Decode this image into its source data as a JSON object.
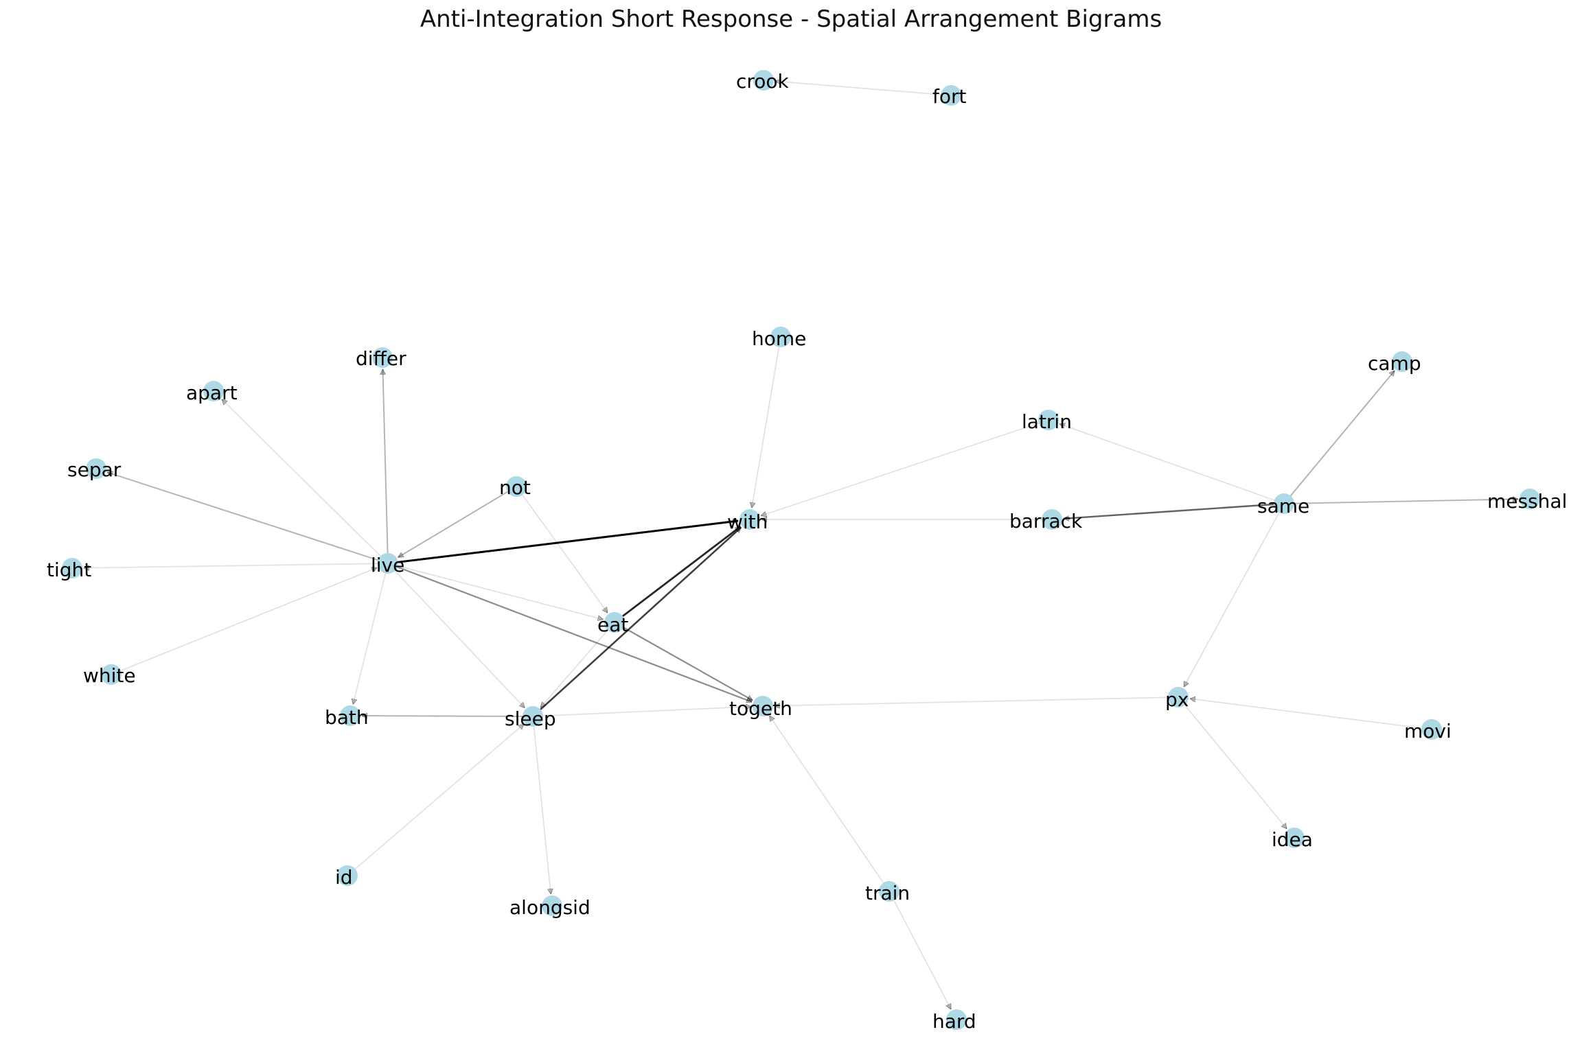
{
  "title": "Anti-Integration Short Response - Spatial Arrangement Bigrams",
  "colors": {
    "node": "#add8e6",
    "edge": "#000000",
    "label": "#000000",
    "background": "#ffffff"
  },
  "nodes": [
    {
      "id": "crook",
      "label": "crook"
    },
    {
      "id": "fort",
      "label": "fort"
    },
    {
      "id": "home",
      "label": "home"
    },
    {
      "id": "differ",
      "label": "differ"
    },
    {
      "id": "camp",
      "label": "camp"
    },
    {
      "id": "apart",
      "label": "apart"
    },
    {
      "id": "latrin",
      "label": "latrin"
    },
    {
      "id": "separ",
      "label": "separ"
    },
    {
      "id": "not",
      "label": "not"
    },
    {
      "id": "same",
      "label": "same"
    },
    {
      "id": "messhal",
      "label": "messhal"
    },
    {
      "id": "with",
      "label": "with"
    },
    {
      "id": "barrack",
      "label": "barrack"
    },
    {
      "id": "tight",
      "label": "tight"
    },
    {
      "id": "live",
      "label": "live"
    },
    {
      "id": "eat",
      "label": "eat"
    },
    {
      "id": "white",
      "label": "white"
    },
    {
      "id": "px",
      "label": "px"
    },
    {
      "id": "bath",
      "label": "bath"
    },
    {
      "id": "sleep",
      "label": "sleep"
    },
    {
      "id": "togeth",
      "label": "togeth"
    },
    {
      "id": "movi",
      "label": "movi"
    },
    {
      "id": "idea",
      "label": "idea"
    },
    {
      "id": "id",
      "label": "id"
    },
    {
      "id": "train",
      "label": "train"
    },
    {
      "id": "alongsid",
      "label": "alongsid"
    },
    {
      "id": "hard",
      "label": "hard"
    }
  ],
  "edges": [
    {
      "source": "fort",
      "target": "crook",
      "weight": 0.12
    },
    {
      "source": "home",
      "target": "with",
      "weight": 0.12
    },
    {
      "source": "latrin",
      "target": "with",
      "weight": 0.12
    },
    {
      "source": "barrack",
      "target": "with",
      "weight": 0.12
    },
    {
      "source": "live",
      "target": "with",
      "weight": 1.0
    },
    {
      "source": "eat",
      "target": "with",
      "weight": 0.85
    },
    {
      "source": "sleep",
      "target": "with",
      "weight": 0.75
    },
    {
      "source": "same",
      "target": "barrack",
      "weight": 0.62
    },
    {
      "source": "same",
      "target": "camp",
      "weight": 0.3
    },
    {
      "source": "same",
      "target": "latrin",
      "weight": 0.12
    },
    {
      "source": "same",
      "target": "messhal",
      "weight": 0.3
    },
    {
      "source": "same",
      "target": "px",
      "weight": 0.12
    },
    {
      "source": "live",
      "target": "differ",
      "weight": 0.3
    },
    {
      "source": "live",
      "target": "apart",
      "weight": 0.12
    },
    {
      "source": "live",
      "target": "separ",
      "weight": 0.3
    },
    {
      "source": "live",
      "target": "tight",
      "weight": 0.12
    },
    {
      "source": "not",
      "target": "live",
      "weight": 0.3
    },
    {
      "source": "white",
      "target": "live",
      "weight": 0.12
    },
    {
      "source": "live",
      "target": "eat",
      "weight": 0.12
    },
    {
      "source": "live",
      "target": "togeth",
      "weight": 0.45
    },
    {
      "source": "live",
      "target": "sleep",
      "weight": 0.12
    },
    {
      "source": "live",
      "target": "bath",
      "weight": 0.12
    },
    {
      "source": "not",
      "target": "eat",
      "weight": 0.12
    },
    {
      "source": "eat",
      "target": "togeth",
      "weight": 0.45
    },
    {
      "source": "eat",
      "target": "sleep",
      "weight": 0.12
    },
    {
      "source": "sleep",
      "target": "bath",
      "weight": 0.3
    },
    {
      "source": "sleep",
      "target": "togeth",
      "weight": 0.12
    },
    {
      "source": "id",
      "target": "sleep",
      "weight": 0.12
    },
    {
      "source": "sleep",
      "target": "alongsid",
      "weight": 0.12
    },
    {
      "source": "px",
      "target": "togeth",
      "weight": 0.12
    },
    {
      "source": "train",
      "target": "togeth",
      "weight": 0.12
    },
    {
      "source": "movi",
      "target": "px",
      "weight": 0.12
    },
    {
      "source": "px",
      "target": "idea",
      "weight": 0.12
    },
    {
      "source": "train",
      "target": "hard",
      "weight": 0.12
    }
  ]
}
